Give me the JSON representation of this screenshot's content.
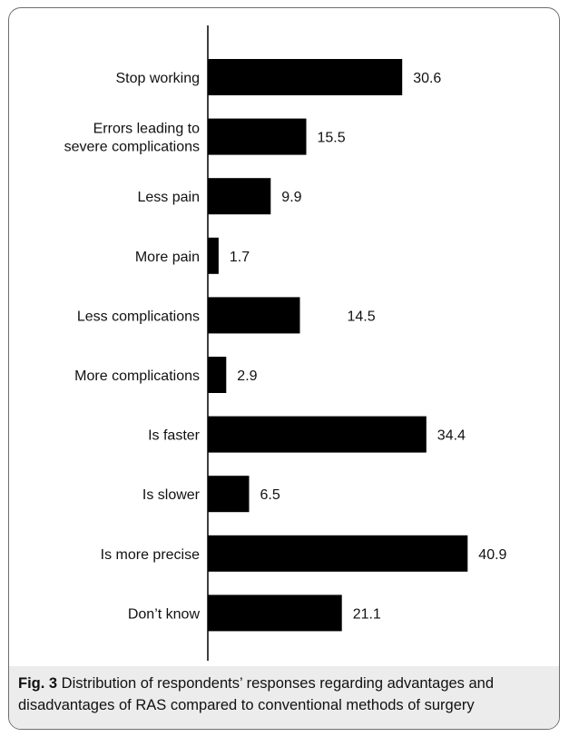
{
  "chart_data": {
    "type": "bar",
    "orientation": "horizontal",
    "categories": [
      [
        "Stop working"
      ],
      [
        "Errors leading to",
        "severe complications"
      ],
      [
        "Less pain"
      ],
      [
        "More pain"
      ],
      [
        "Less complications"
      ],
      [
        "More complications"
      ],
      [
        "Is faster"
      ],
      [
        "Is slower"
      ],
      [
        "Is more precise"
      ],
      [
        "Don’t know"
      ]
    ],
    "values": [
      30.6,
      15.5,
      9.9,
      1.7,
      14.5,
      2.9,
      34.4,
      6.5,
      40.9,
      21.1
    ],
    "value_labels": [
      "30.6",
      "15.5",
      "9.9",
      "1.7",
      "14.5",
      "2.9",
      "34.4",
      "6.5",
      "40.9",
      "21.1"
    ],
    "bar_color": "#000000",
    "xlim": [
      0,
      41
    ],
    "grid": false,
    "legend": "none"
  },
  "caption": {
    "fig_label": "Fig. 3",
    "text": " Distribution of respondents’ responses regarding advantages and disadvantages of RAS compared to conventional methods of surgery"
  }
}
